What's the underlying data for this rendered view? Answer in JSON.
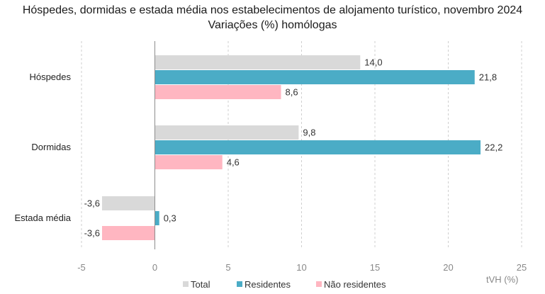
{
  "chart_data": {
    "type": "bar",
    "orientation": "horizontal",
    "title": "Hóspedes, dormidas e estada média nos estabelecimentos de alojamento turístico, novembro 2024",
    "subtitle": "Variações (%) homólogas",
    "categories": [
      "Hóspedes",
      "Dormidas",
      "Estada média"
    ],
    "series": [
      {
        "name": "Total",
        "color": "#d9d9d9",
        "values": [
          14.0,
          9.8,
          -3.6
        ],
        "labels": [
          "14,0",
          "9,8",
          "-3,6"
        ]
      },
      {
        "name": "Residentes",
        "color": "#4bacc6",
        "values": [
          21.8,
          22.2,
          0.3
        ],
        "labels": [
          "21,8",
          "22,2",
          "0,3"
        ]
      },
      {
        "name": "Não residentes",
        "color": "#ffb6c1",
        "values": [
          8.6,
          4.6,
          -3.6
        ],
        "labels": [
          "8,6",
          "4,6",
          "-3,6"
        ]
      }
    ],
    "xlim": [
      -5,
      25
    ],
    "xticks": [
      -5,
      0,
      5,
      10,
      15,
      20,
      25
    ],
    "xlabel": "tVH (%)",
    "grid": "vertical-dashed",
    "legend": "bottom"
  }
}
